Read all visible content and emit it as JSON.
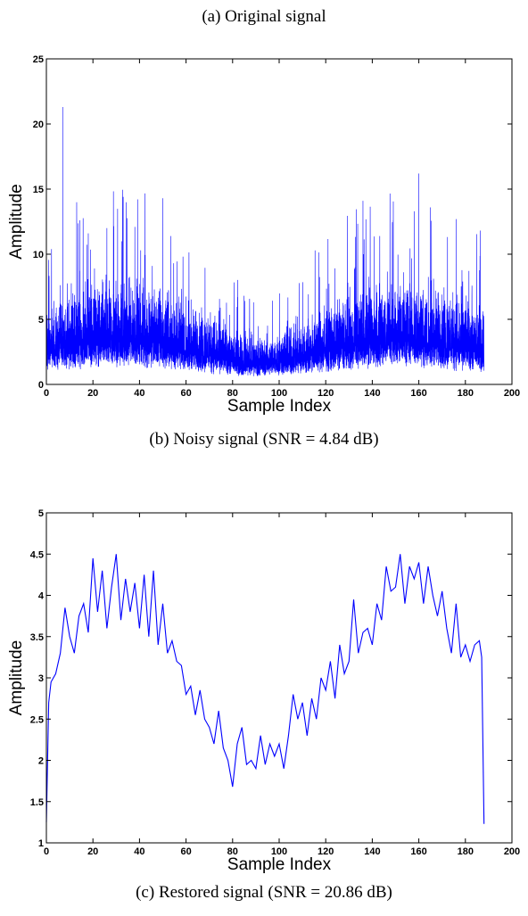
{
  "captions": {
    "a": "(a) Original signal",
    "b": "(b) Noisy signal (SNR = 4.84 dB)",
    "c": "(c) Restored signal (SNR = 20.86 dB)"
  },
  "chart_data": [
    {
      "type": "line",
      "caption": "(b) Noisy signal (SNR = 4.84 dB)",
      "xlabel": "Sample Index",
      "ylabel": "Amplitude",
      "xlim": [
        0,
        200
      ],
      "ylim": [
        0,
        25
      ],
      "xticks": [
        0,
        20,
        40,
        60,
        80,
        100,
        120,
        140,
        160,
        180,
        200
      ],
      "yticks": [
        0,
        5,
        10,
        15,
        20,
        25
      ],
      "grid": false,
      "color": "#0000ff",
      "series": [
        {
          "x": [
            0,
            5,
            10,
            15,
            20,
            25,
            30,
            35,
            40,
            45,
            50,
            55,
            60,
            65,
            70,
            75,
            80,
            85,
            90,
            95,
            100,
            105,
            110,
            115,
            120,
            125,
            130,
            135,
            140,
            145,
            150,
            155,
            160,
            165,
            170,
            175,
            180,
            185,
            188
          ],
          "y": [
            3.0,
            3.4,
            3.6,
            3.8,
            3.9,
            4.0,
            4.0,
            4.0,
            4.0,
            3.9,
            3.7,
            3.4,
            3.2,
            2.9,
            2.7,
            2.4,
            2.2,
            2.0,
            1.9,
            1.9,
            2.0,
            2.2,
            2.4,
            2.7,
            2.9,
            3.2,
            3.5,
            3.7,
            3.9,
            4.0,
            4.1,
            4.1,
            4.0,
            3.9,
            3.6,
            3.4,
            3.2,
            3.2,
            3.0
          ],
          "peak_x": [
            7,
            18,
            26,
            33,
            38,
            50,
            136,
            149,
            158,
            160,
            165,
            176
          ],
          "peak_y": [
            21.3,
            11.6,
            12.0,
            14.4,
            12.1,
            14.3,
            14.1,
            12.6,
            13.3,
            16.2,
            13.6,
            12.7
          ]
        }
      ]
    },
    {
      "type": "line",
      "caption": "(c) Restored signal (SNR = 20.86 dB)",
      "xlabel": "Sample Index",
      "ylabel": "Amplitude",
      "xlim": [
        0,
        200
      ],
      "ylim": [
        1,
        5
      ],
      "xticks": [
        0,
        20,
        40,
        60,
        80,
        100,
        120,
        140,
        160,
        180,
        200
      ],
      "yticks": [
        1,
        1.5,
        2,
        2.5,
        3,
        3.5,
        4,
        4.5,
        5
      ],
      "grid": false,
      "color": "#0000ff",
      "series": [
        {
          "x": [
            0,
            1,
            2,
            4,
            6,
            8,
            10,
            12,
            14,
            16,
            18,
            20,
            22,
            24,
            26,
            28,
            30,
            32,
            34,
            36,
            38,
            40,
            42,
            44,
            46,
            48,
            50,
            52,
            54,
            56,
            58,
            60,
            62,
            64,
            66,
            68,
            70,
            72,
            74,
            76,
            78,
            80,
            82,
            84,
            86,
            88,
            90,
            92,
            94,
            96,
            98,
            100,
            102,
            104,
            106,
            108,
            110,
            112,
            114,
            116,
            118,
            120,
            122,
            124,
            126,
            128,
            130,
            132,
            134,
            136,
            138,
            140,
            142,
            144,
            146,
            148,
            150,
            152,
            154,
            156,
            158,
            160,
            162,
            164,
            166,
            168,
            170,
            172,
            174,
            176,
            178,
            180,
            182,
            184,
            186,
            187,
            188
          ],
          "y": [
            1.25,
            2.7,
            2.95,
            3.05,
            3.3,
            3.85,
            3.5,
            3.3,
            3.75,
            3.9,
            3.55,
            4.45,
            3.8,
            4.3,
            3.6,
            4.1,
            4.5,
            3.7,
            4.2,
            3.8,
            4.15,
            3.6,
            4.25,
            3.5,
            4.3,
            3.4,
            3.9,
            3.3,
            3.45,
            3.2,
            3.15,
            2.8,
            2.9,
            2.55,
            2.85,
            2.5,
            2.4,
            2.2,
            2.6,
            2.15,
            2.0,
            1.68,
            2.2,
            2.4,
            1.95,
            2.0,
            1.9,
            2.3,
            1.95,
            2.2,
            2.05,
            2.2,
            1.9,
            2.3,
            2.8,
            2.5,
            2.7,
            2.3,
            2.75,
            2.5,
            3.0,
            2.85,
            3.2,
            2.75,
            3.4,
            3.05,
            3.2,
            3.95,
            3.3,
            3.55,
            3.6,
            3.4,
            3.9,
            3.7,
            4.35,
            4.05,
            4.1,
            4.5,
            3.9,
            4.35,
            4.2,
            4.4,
            3.9,
            4.35,
            4.0,
            3.75,
            4.05,
            3.6,
            3.3,
            3.9,
            3.25,
            3.4,
            3.2,
            3.4,
            3.45,
            3.25,
            1.23
          ]
        }
      ]
    }
  ]
}
